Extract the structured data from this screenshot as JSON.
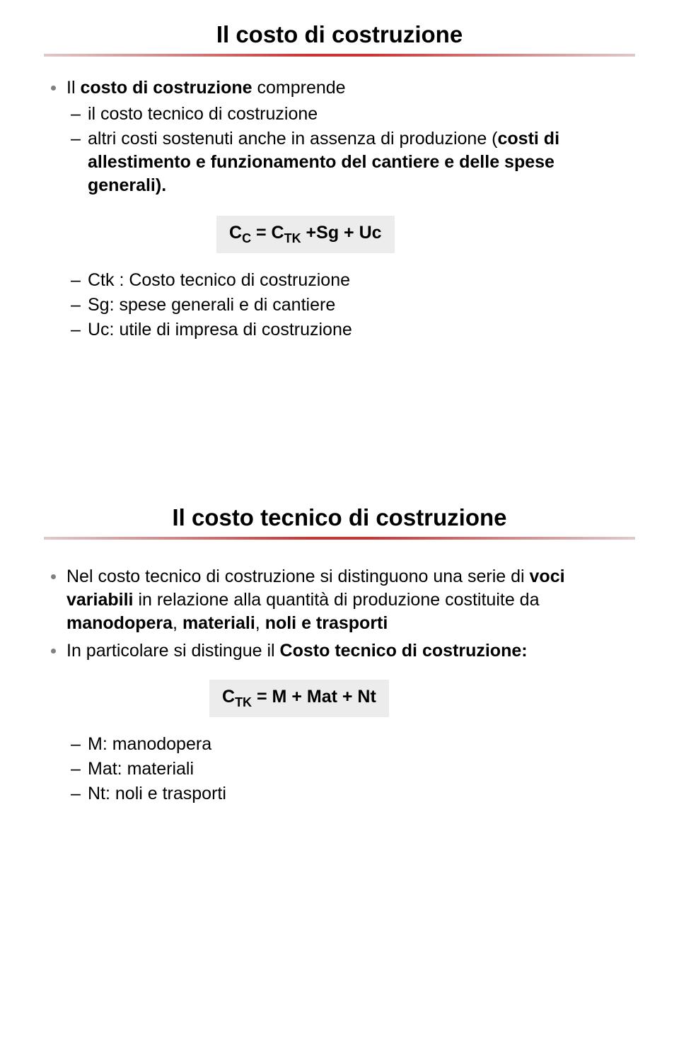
{
  "slide1": {
    "title": "Il costo di costruzione",
    "intro_prefix": "Il ",
    "intro_bold": "costo di costruzione",
    "intro_suffix": " comprende",
    "sub1_text": "il costo tecnico di costruzione",
    "sub2_prefix": "altri costi sostenuti anche in assenza di produzione (",
    "sub2_bold": "costi di allestimento e funzionamento del cantiere e delle spese generali).",
    "formula_parts": {
      "c": "C",
      "c_sub": "C",
      "eq": " = C",
      "tk_sub": "TK",
      "tail": " +Sg + Uc"
    },
    "def1": "Ctk : Costo tecnico di costruzione",
    "def2": "Sg: spese generali e di cantiere",
    "def3": "Uc: utile di impresa di costruzione"
  },
  "slide2": {
    "title": "Il costo tecnico di costruzione",
    "p1_prefix": "Nel costo tecnico di costruzione si distinguono una serie di ",
    "p1_b1": "voci variabili",
    "p1_mid": " in relazione alla quantità di produzione costituite da ",
    "p1_b2": "manodopera",
    "p1_comma": ", ",
    "p1_b3": "materiali",
    "p1_comma2": ", ",
    "p1_b4": "noli e trasporti",
    "p2_prefix": "In particolare si distingue il ",
    "p2_bold": "Costo tecnico di costruzione:",
    "formula_parts": {
      "c": "C",
      "tk_sub": "TK",
      "tail": " = M + Mat + Nt"
    },
    "def1": "M: manodopera",
    "def2": "Mat: materiali",
    "def3": "Nt: noli e trasporti"
  }
}
